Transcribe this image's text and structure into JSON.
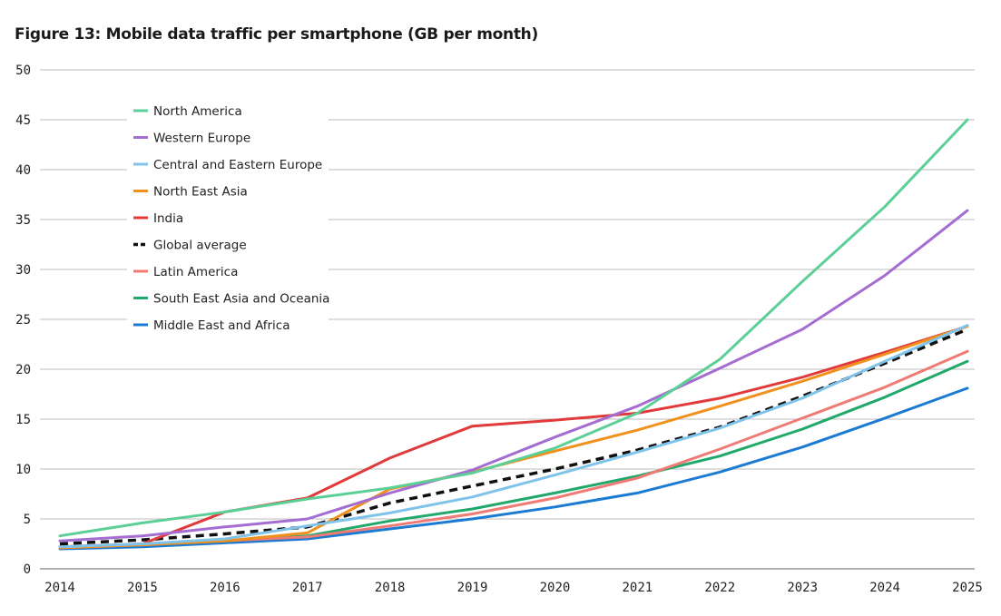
{
  "chart_data": {
    "type": "line",
    "title": "Figure 13: Mobile data traffic per smartphone (GB per month)",
    "xlabel": "",
    "ylabel": "",
    "ylim": [
      0,
      50
    ],
    "yticks": [
      0,
      5,
      10,
      15,
      20,
      25,
      30,
      35,
      40,
      45,
      50
    ],
    "categories": [
      "2014",
      "2015",
      "2016",
      "2017",
      "2018",
      "2019",
      "2020",
      "2021",
      "2022",
      "2023",
      "2024",
      "2025"
    ],
    "grid": "horizontal",
    "legend_position": "top-left",
    "series": [
      {
        "name": "North America",
        "color": "#5ccf97",
        "dashed": false,
        "values": [
          3.3,
          4.6,
          5.7,
          7.0,
          8.1,
          9.6,
          12.1,
          15.6,
          21.0,
          28.8,
          36.3,
          45.0
        ]
      },
      {
        "name": "Western Europe",
        "color": "#a56dd1",
        "dashed": false,
        "values": [
          2.8,
          3.3,
          4.2,
          5.0,
          7.6,
          9.9,
          13.2,
          16.3,
          20.1,
          24.0,
          29.4,
          35.9
        ]
      },
      {
        "name": "Central and Eastern Europe",
        "color": "#7fc3ea",
        "dashed": false,
        "values": [
          2.2,
          2.5,
          3.0,
          4.3,
          5.6,
          7.2,
          9.4,
          11.7,
          14.1,
          17.1,
          20.8,
          24.4
        ]
      },
      {
        "name": "North East Asia",
        "color": "#f0901d",
        "dashed": false,
        "values": [
          2.1,
          2.4,
          2.8,
          3.6,
          8.0,
          9.7,
          11.8,
          13.9,
          16.3,
          18.8,
          21.5,
          24.3
        ]
      },
      {
        "name": "India",
        "color": "#e03a3a",
        "dashed": false,
        "values": [
          2.2,
          2.5,
          5.7,
          7.1,
          11.1,
          14.3,
          14.9,
          15.6,
          17.1,
          19.2,
          21.7,
          24.3
        ]
      },
      {
        "name": "Global average",
        "color": "#111111",
        "dashed": true,
        "values": [
          2.5,
          2.9,
          3.5,
          4.2,
          6.6,
          8.3,
          10.0,
          11.9,
          14.2,
          17.3,
          20.6,
          24.0
        ]
      },
      {
        "name": "Latin America",
        "color": "#f07a74",
        "dashed": false,
        "values": [
          2.1,
          2.4,
          2.8,
          3.2,
          4.3,
          5.5,
          7.1,
          9.1,
          12.0,
          15.1,
          18.2,
          21.8
        ]
      },
      {
        "name": "South East Asia and Oceania",
        "color": "#21a86b",
        "dashed": false,
        "values": [
          2.2,
          2.4,
          2.8,
          3.3,
          4.8,
          6.0,
          7.6,
          9.3,
          11.3,
          14.0,
          17.2,
          20.8
        ]
      },
      {
        "name": "Middle East and Africa",
        "color": "#1b7ad1",
        "dashed": false,
        "values": [
          2.0,
          2.2,
          2.6,
          3.0,
          4.0,
          5.0,
          6.2,
          7.6,
          9.7,
          12.2,
          15.1,
          18.1
        ]
      }
    ]
  }
}
